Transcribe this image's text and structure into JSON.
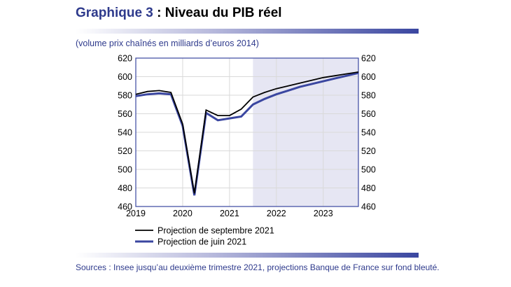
{
  "header": {
    "title_accent": "Graphique 3",
    "title_rest": " : Niveau du PIB réel",
    "subtitle": "(volume prix chaînés en milliards d’euros 2014)"
  },
  "footer": {
    "sources": "Sources : Insee jusqu’au deuxième trimestre 2021, projections Banque de France sur fond bleuté."
  },
  "colors": {
    "accent": "#2e3a8c",
    "projection_band": "#e6e6f3",
    "series_sept": "#000000",
    "series_june": "#3a46a0"
  },
  "chart_data": {
    "type": "line",
    "title": "Niveau du PIB réel",
    "xlabel": "",
    "ylabel": "volume prix chaînés en milliards d’euros 2014",
    "x_ticks": [
      "2019",
      "2020",
      "2021",
      "2022",
      "2023"
    ],
    "x_quarters": [
      "2019Q1",
      "2019Q2",
      "2019Q3",
      "2019Q4",
      "2020Q1",
      "2020Q2",
      "2020Q3",
      "2020Q4",
      "2021Q1",
      "2021Q2",
      "2021Q3",
      "2021Q4",
      "2022Q1",
      "2022Q2",
      "2022Q3",
      "2022Q4",
      "2023Q1",
      "2023Q2",
      "2023Q3",
      "2023Q4"
    ],
    "ylim": [
      460,
      620
    ],
    "y_ticks": [
      "460",
      "480",
      "500",
      "520",
      "540",
      "560",
      "580",
      "600",
      "620"
    ],
    "grid": true,
    "projection_start_quarter": "2021Q3",
    "legend_position": "bottom-left",
    "series": [
      {
        "name": "Projection de septembre 2021",
        "values": [
          581,
          584,
          585,
          583,
          549,
          474,
          564,
          558,
          558,
          565,
          578,
          583,
          587,
          590,
          593,
          596,
          599,
          601,
          603,
          605
        ]
      },
      {
        "name": "Projection de juin 2021",
        "values": [
          579,
          581,
          582,
          581,
          547,
          472,
          561,
          553,
          555,
          557,
          570,
          576,
          581,
          585,
          589,
          592,
          595,
          598,
          601,
          604
        ]
      }
    ]
  }
}
